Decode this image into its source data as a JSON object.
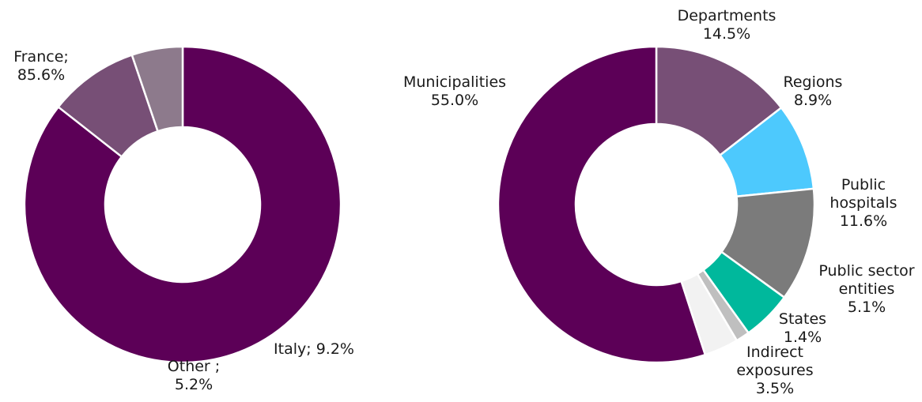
{
  "chart_data": [
    {
      "type": "pie",
      "variant": "donut",
      "start": "top",
      "direction": "clockwise",
      "slices": [
        {
          "label": "France",
          "label_lines": [
            "France;",
            "85.6%"
          ],
          "value": 85.6,
          "color": "#5c0057"
        },
        {
          "label": "Italy",
          "label_lines": [
            "Italy; 9.2%"
          ],
          "value": 9.2,
          "color": "#774f76"
        },
        {
          "label": "Other",
          "label_lines": [
            "Other ;",
            "5.2%"
          ],
          "value": 5.2,
          "color": "#8d7a8c"
        }
      ]
    },
    {
      "type": "pie",
      "variant": "donut",
      "start": "top",
      "direction": "clockwise",
      "slices": [
        {
          "label": "Departments",
          "label_lines": [
            "Departments",
            "14.5%"
          ],
          "value": 14.5,
          "color": "#774f76"
        },
        {
          "label": "Regions",
          "label_lines": [
            "Regions",
            "8.9%"
          ],
          "value": 8.9,
          "color": "#4dc9fd"
        },
        {
          "label": "Public hospitals",
          "label_lines": [
            "Public",
            "hospitals",
            "11.6%"
          ],
          "value": 11.6,
          "color": "#7b7b7b"
        },
        {
          "label": "Public sector entities",
          "label_lines": [
            "Public sector",
            "entities",
            "5.1%"
          ],
          "value": 5.1,
          "color": "#00b89c"
        },
        {
          "label": "States",
          "label_lines": [
            "States",
            "1.4%"
          ],
          "value": 1.4,
          "color": "#bfbfbf"
        },
        {
          "label": "Indirect exposures",
          "label_lines": [
            "Indirect",
            "exposures",
            "3.5%"
          ],
          "value": 3.5,
          "color": "#f2f2f2"
        },
        {
          "label": "Municipalities",
          "label_lines": [
            "Municipalities",
            "55.0%"
          ],
          "value": 55.0,
          "color": "#5c0057"
        }
      ]
    }
  ]
}
